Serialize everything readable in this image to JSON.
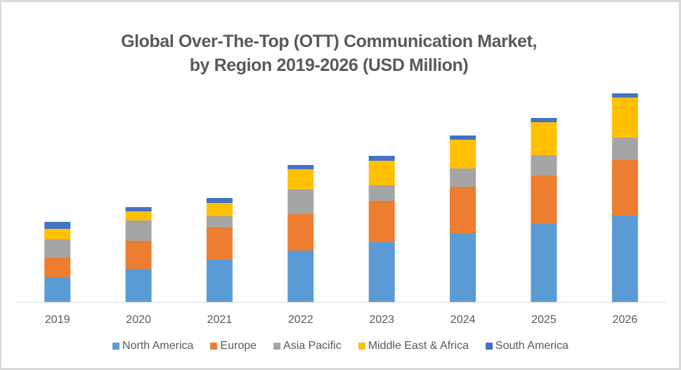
{
  "chart_data": {
    "type": "bar",
    "stacked": true,
    "title": "Global Over-The-Top (OTT) Communication Market,",
    "subtitle": "by Region 2019-2026 (USD Million)",
    "title_lines": [
      "Global Over-The-Top (OTT) Communication Market,",
      "by Region 2019-2026 (USD Million)"
    ],
    "xlabel": "",
    "ylabel": "",
    "y_axis_visible": false,
    "grid": false,
    "legend_position": "bottom",
    "units_note": "relative values estimated from bar heights (no y-axis shown)",
    "ylim": [
      0,
      320
    ],
    "categories": [
      "2019",
      "2020",
      "2021",
      "2022",
      "2023",
      "2024",
      "2025",
      "2026"
    ],
    "series": [
      {
        "name": "North America",
        "color": "#5b9bd5",
        "values": [
          35,
          47,
          60,
          73,
          85,
          98,
          111,
          123
        ]
      },
      {
        "name": "Europe",
        "color": "#ed7d31",
        "values": [
          28,
          40,
          46,
          52,
          59,
          66,
          69,
          79
        ]
      },
      {
        "name": "Asia Pacific",
        "color": "#a5a5a5",
        "values": [
          26,
          29,
          16,
          35,
          22,
          26,
          29,
          32
        ]
      },
      {
        "name": "Middle East & Africa",
        "color": "#ffc000",
        "values": [
          15,
          13,
          19,
          29,
          35,
          41,
          47,
          57
        ]
      },
      {
        "name": "South America",
        "color": "#4472c4",
        "values": [
          10,
          6,
          7,
          6,
          7,
          6,
          6,
          6
        ]
      }
    ]
  }
}
